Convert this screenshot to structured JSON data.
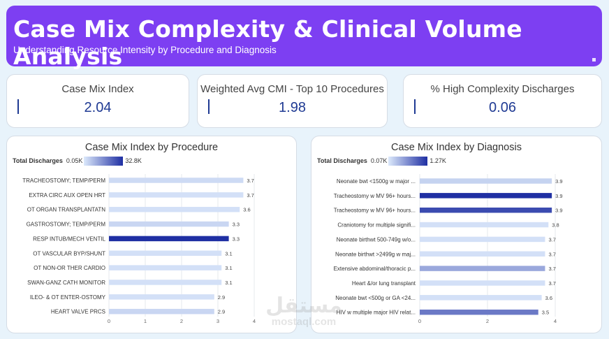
{
  "header": {
    "title": "Case Mix Complexity & Clinical Volume Analysis",
    "subtitle": "Understanding Resource Intensity by Procedure and Diagnosis"
  },
  "kpis": [
    {
      "label": "Case Mix Index",
      "value": "2.04"
    },
    {
      "label": "Weighted Avg CMI - Top 10 Procedures",
      "value": "1.98"
    },
    {
      "label": "% High Complexity Discharges",
      "value": "0.06"
    }
  ],
  "colors": {
    "accent": "#7d3ff2",
    "dark_blue": "#1f2fa3",
    "light_blue": "#dce9fb"
  },
  "chart_data": [
    {
      "type": "bar",
      "orientation": "horizontal",
      "title": "Case Mix Index by Procedure",
      "legend": {
        "title": "Total Discharges",
        "min": "0.05K",
        "max": "32.8K"
      },
      "categories": [
        "TRACHEOSTOMY; TEMP/PERM",
        "EXTRA CIRC AUX OPEN HRT",
        "OT ORGAN TRANSPLANTATN",
        "GASTROSTOMY; TEMP/PERM",
        "RESP INTUB/MECH VENTIL",
        "OT VASCULAR BYP/SHUNT",
        "OT NON-OR THER CARDIO",
        "SWAN-GANZ CATH MONITOR",
        "ILEO- & OT ENTER-OSTOMY",
        "HEART VALVE PRCS"
      ],
      "values": [
        3.7,
        3.7,
        3.6,
        3.3,
        3.3,
        3.1,
        3.1,
        3.1,
        2.9,
        2.9
      ],
      "labels": [
        "3.7",
        "3.7",
        "3.6",
        "3.3",
        "3.3",
        "3.1",
        "3.1",
        "3.1",
        "2.9",
        "2.9"
      ],
      "intensity": [
        0.08,
        0.05,
        0.05,
        0.1,
        1.0,
        0.05,
        0.05,
        0.05,
        0.05,
        0.1
      ],
      "xlim": [
        0,
        4
      ],
      "xticks": [
        "0",
        "1",
        "2",
        "3",
        "4"
      ]
    },
    {
      "type": "bar",
      "orientation": "horizontal",
      "title": "Case Mix Index by Diagnosis",
      "legend": {
        "title": "Total Discharges",
        "min": "0.07K",
        "max": "1.27K"
      },
      "categories": [
        "Neonate bwt <1500g w major ...",
        "Tracheostomy w MV 96+ hours...",
        "Tracheostomy w MV 96+ hours...",
        "Craniotomy for multiple signifi...",
        "Neonate birthwt 500-749g w/o...",
        "Neonate birthwt >2499g w maj...",
        "Extensive abdominal/thoracic p...",
        "Heart &/or lung transplant",
        "Neonate bwt <500g or GA <24...",
        "HIV w multiple major HIV relat..."
      ],
      "values": [
        3.9,
        3.9,
        3.9,
        3.8,
        3.7,
        3.7,
        3.7,
        3.7,
        3.6,
        3.5
      ],
      "labels": [
        "3.9",
        "3.9",
        "3.9",
        "3.8",
        "3.7",
        "3.7",
        "3.7",
        "3.7",
        "3.6",
        "3.5"
      ],
      "intensity": [
        0.12,
        1.0,
        0.85,
        0.05,
        0.05,
        0.05,
        0.35,
        0.05,
        0.05,
        0.6
      ],
      "xlim": [
        0,
        4
      ],
      "xticks": [
        "0",
        "2",
        "4"
      ]
    }
  ],
  "watermark": {
    "arabic": "مستقل",
    "latin": "mostaql.com"
  }
}
